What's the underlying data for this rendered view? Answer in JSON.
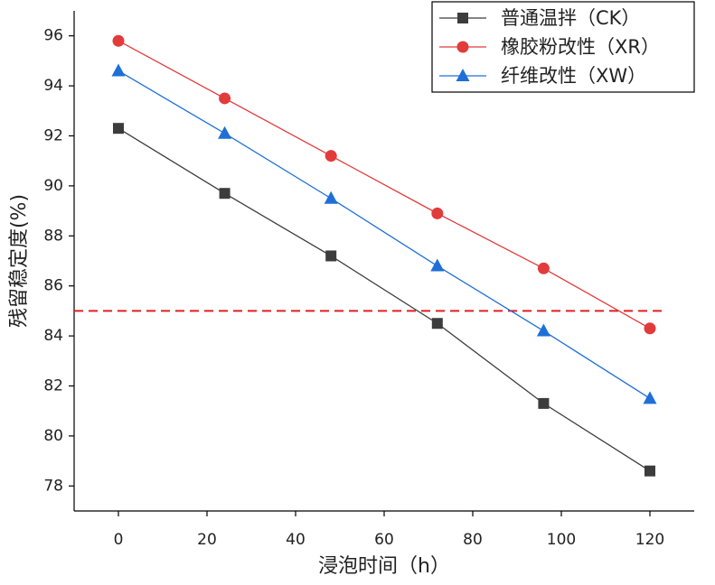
{
  "chart_data": {
    "type": "line",
    "x_label": "浸泡时间（h）",
    "y_label": "残留稳定度(%)",
    "x": [
      0,
      24,
      48,
      72,
      96,
      120
    ],
    "series": [
      {
        "name": "普通温拌（CK）",
        "color": "#3c3c3c",
        "marker": "square",
        "values": [
          92.3,
          89.7,
          87.2,
          84.5,
          81.3,
          78.6
        ]
      },
      {
        "name": "橡胶粉改性（XR）",
        "color": "#e23b3b",
        "marker": "circle",
        "values": [
          95.8,
          93.5,
          91.2,
          88.9,
          86.7,
          84.3
        ]
      },
      {
        "name": "纤维改性（XW）",
        "color": "#1f6fd6",
        "marker": "triangle",
        "values": [
          94.6,
          92.1,
          89.5,
          86.8,
          84.2,
          81.5
        ]
      }
    ],
    "reference_line": {
      "y": 85,
      "color": "#e02020"
    },
    "xlim": [
      -10,
      130
    ],
    "xticks": [
      0,
      20,
      40,
      60,
      80,
      100,
      120
    ],
    "ylim": [
      77,
      97
    ],
    "yticks": [
      78,
      80,
      82,
      84,
      86,
      88,
      90,
      92,
      94,
      96
    ],
    "legend": "upper right"
  }
}
